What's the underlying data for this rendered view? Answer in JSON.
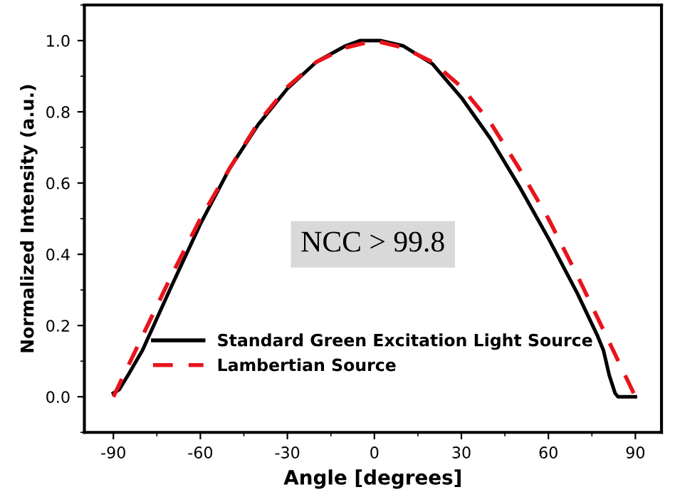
{
  "chart_data": {
    "type": "line",
    "xlabel": "Angle [degrees]",
    "ylabel": "Normalized Intensity (a.u.)",
    "xlim": [
      -100,
      99
    ],
    "ylim": [
      -0.1,
      1.1
    ],
    "xticks": [
      -90,
      -60,
      -30,
      0,
      30,
      60,
      90
    ],
    "yticks": [
      {
        "value": 0,
        "label": "0.0"
      },
      {
        "value": 0.2,
        "label": "0.2"
      },
      {
        "value": 0.4,
        "label": "0.4"
      },
      {
        "value": 0.6,
        "label": "0.6"
      },
      {
        "value": 0.8,
        "label": "0.8"
      },
      {
        "value": 1.0,
        "label": "1.0"
      }
    ],
    "grid": false,
    "legend": "bottom",
    "marker": "none",
    "annotations": [
      "NCC > 99.8"
    ],
    "series": [
      {
        "name": "Standard Green Excitation Light Source",
        "color": "#000000",
        "line_style": "solid",
        "x": [
          -90,
          -88,
          -85,
          -80,
          -75,
          -70,
          -60,
          -50,
          -40,
          -30,
          -20,
          -10,
          -5,
          0,
          2,
          10,
          20,
          30,
          40,
          50,
          60,
          70,
          77,
          79,
          81,
          83,
          84,
          90
        ],
        "values": [
          0.01,
          0.02,
          0.06,
          0.13,
          0.22,
          0.31,
          0.485,
          0.64,
          0.765,
          0.865,
          0.94,
          0.985,
          1.0,
          1.0,
          1.0,
          0.985,
          0.935,
          0.84,
          0.725,
          0.59,
          0.445,
          0.29,
          0.17,
          0.13,
          0.06,
          0.01,
          0.0,
          0.0
        ]
      },
      {
        "name": "Lambertian Source",
        "color": "#e8141c",
        "line_style": "dashed",
        "x": [
          -90,
          -80,
          -70,
          -60,
          -50,
          -40,
          -30,
          -20,
          -10,
          0,
          10,
          20,
          30,
          40,
          50,
          60,
          70,
          80,
          90
        ],
        "values": [
          0.0,
          0.17,
          0.34,
          0.5,
          0.64,
          0.77,
          0.87,
          0.94,
          0.98,
          1.0,
          0.98,
          0.94,
          0.87,
          0.77,
          0.64,
          0.5,
          0.34,
          0.17,
          0.0
        ]
      }
    ]
  }
}
